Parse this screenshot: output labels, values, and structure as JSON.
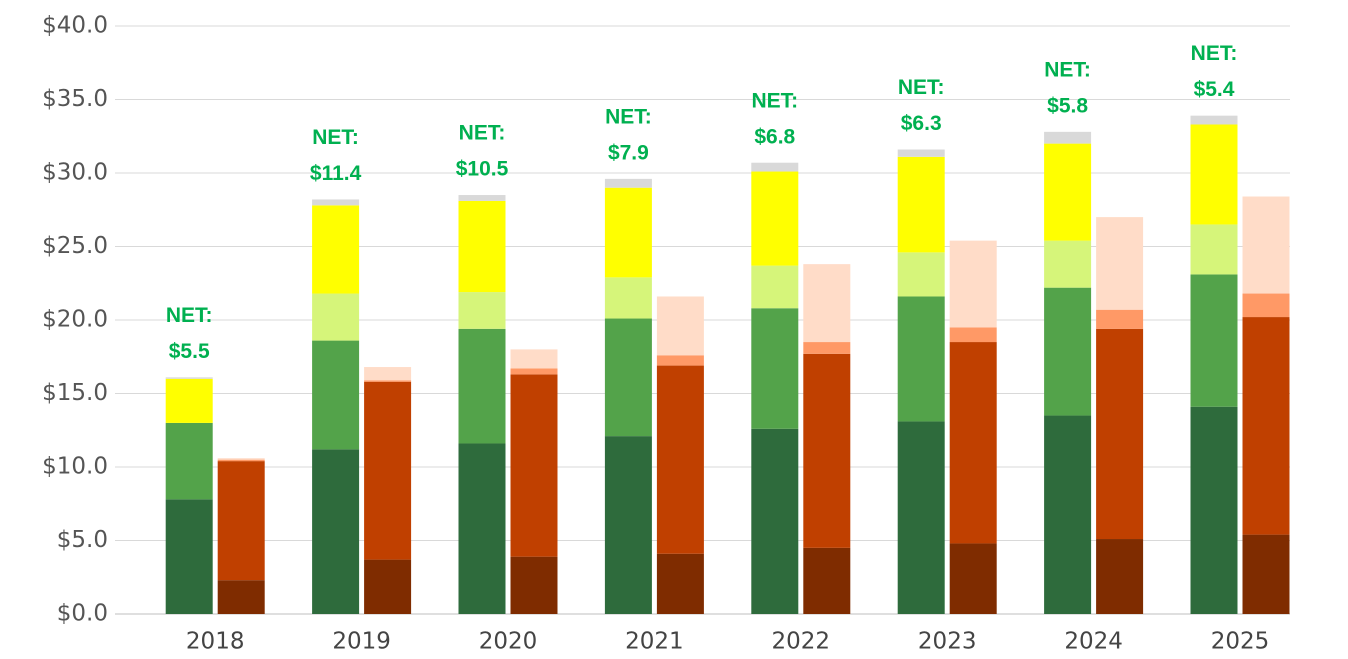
{
  "chart_data": {
    "type": "stacked_grouped_bar",
    "categories": [
      "2018",
      "2019",
      "2020",
      "2021",
      "2022",
      "2023",
      "2024",
      "2025"
    ],
    "series": [
      {
        "stack": 0,
        "color": "#2e6b3c",
        "values": [
          7.8,
          11.2,
          11.6,
          12.1,
          12.6,
          13.1,
          13.5,
          14.1
        ]
      },
      {
        "stack": 0,
        "color": "#53a34a",
        "values": [
          5.2,
          7.4,
          7.8,
          8.0,
          8.2,
          8.5,
          8.7,
          9.0
        ]
      },
      {
        "stack": 0,
        "color": "#d6f57a",
        "values": [
          0,
          3.2,
          2.5,
          2.8,
          2.9,
          3.0,
          3.2,
          3.4
        ]
      },
      {
        "stack": 0,
        "color": "#ffff00",
        "values": [
          3.0,
          6.0,
          6.2,
          6.1,
          6.4,
          6.5,
          6.6,
          6.8
        ]
      },
      {
        "stack": 0,
        "color": "#d9d9d9",
        "values": [
          0.1,
          0.4,
          0.4,
          0.6,
          0.6,
          0.5,
          0.8,
          0.6
        ]
      },
      {
        "stack": 1,
        "color": "#7f2c00",
        "values": [
          2.3,
          3.7,
          3.9,
          4.1,
          4.5,
          4.8,
          5.1,
          5.4
        ]
      },
      {
        "stack": 1,
        "color": "#c04000",
        "values": [
          8.1,
          12.1,
          12.4,
          12.8,
          13.2,
          13.7,
          14.3,
          14.8
        ]
      },
      {
        "stack": 1,
        "color": "#ff9966",
        "values": [
          0.1,
          0.1,
          0.4,
          0.7,
          0.8,
          1.0,
          1.3,
          1.6
        ]
      },
      {
        "stack": 1,
        "color": "#ffdcc8",
        "values": [
          0.1,
          0.9,
          1.3,
          4.0,
          5.3,
          5.9,
          6.3,
          6.6
        ]
      }
    ],
    "annotations": [
      [
        "NET:",
        "$5.5"
      ],
      [
        "NET:",
        "$11.4"
      ],
      [
        "NET:",
        "$10.5"
      ],
      [
        "NET:",
        "$7.9"
      ],
      [
        "NET:",
        "$6.8"
      ],
      [
        "NET:",
        "$6.3"
      ],
      [
        "NET:",
        "$5.8"
      ],
      [
        "NET:",
        "$5.4"
      ]
    ],
    "ylim": [
      0,
      40
    ],
    "yticks": [
      {
        "value": 0,
        "label": "$0.0"
      },
      {
        "value": 5,
        "label": "$5.0"
      },
      {
        "value": 10,
        "label": "$10.0"
      },
      {
        "value": 15,
        "label": "$15.0"
      },
      {
        "value": 20,
        "label": "$20.0"
      },
      {
        "value": 25,
        "label": "$25.0"
      },
      {
        "value": 30,
        "label": "$30.0"
      },
      {
        "value": 35,
        "label": "$35.0"
      },
      {
        "value": 40,
        "label": "$40.0"
      }
    ],
    "grid": true
  }
}
